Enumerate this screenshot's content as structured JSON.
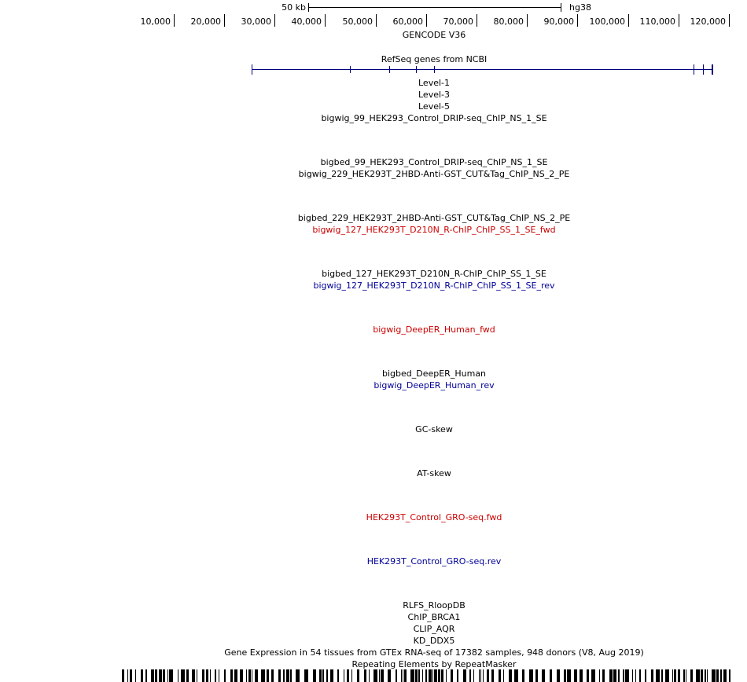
{
  "scale": {
    "label": "50 kb",
    "assembly": "hg38"
  },
  "ruler": {
    "ticks": [
      "10,000",
      "20,000",
      "30,000",
      "40,000",
      "50,000",
      "60,000",
      "70,000",
      "80,000",
      "90,000",
      "100,000",
      "110,000",
      "120,000"
    ]
  },
  "colors": {
    "fwd": "#cc0000",
    "rev": "#000099",
    "gene": "#000080",
    "default": "#000000"
  },
  "tracks": {
    "gencode": "GENCODE V36",
    "refseq": "RefSeq genes from NCBI",
    "level1": "Level-1",
    "level3": "Level-3",
    "level5": "Level-5",
    "t1": "bigwig_99_HEK293_Control_DRIP-seq_ChIP_NS_1_SE",
    "t2": "bigbed_99_HEK293_Control_DRIP-seq_ChIP_NS_1_SE",
    "t3": "bigwig_229_HEK293T_2HBD-Anti-GST_CUT&Tag_ChIP_NS_2_PE",
    "t4": "bigbed_229_HEK293T_2HBD-Anti-GST_CUT&Tag_ChIP_NS_2_PE",
    "t5": "bigwig_127_HEK293T_D210N_R-ChIP_ChIP_SS_1_SE_fwd",
    "t6": "bigbed_127_HEK293T_D210N_R-ChIP_ChIP_SS_1_SE",
    "t7": "bigwig_127_HEK293T_D210N_R-ChIP_ChIP_SS_1_SE_rev",
    "t8": "bigwig_DeepER_Human_fwd",
    "t9": "bigbed_DeepER_Human",
    "t10": "bigwig_DeepER_Human_rev",
    "t11": "GC-skew",
    "t12": "AT-skew",
    "t13": "HEK293T_Control_GRO-seq.fwd",
    "t14": "HEK293T_Control_GRO-seq.rev",
    "t15": "RLFS_RloopDB",
    "t16": "ChIP_BRCA1",
    "t17": "CLIP_AQR",
    "t18": "KD_DDX5",
    "t19": "Gene Expression in 54 tissues from GTEx RNA-seq of 17382 samples, 948 donors (V8, Aug 2019)",
    "t20": "Repeating Elements by RepeatMasker"
  }
}
